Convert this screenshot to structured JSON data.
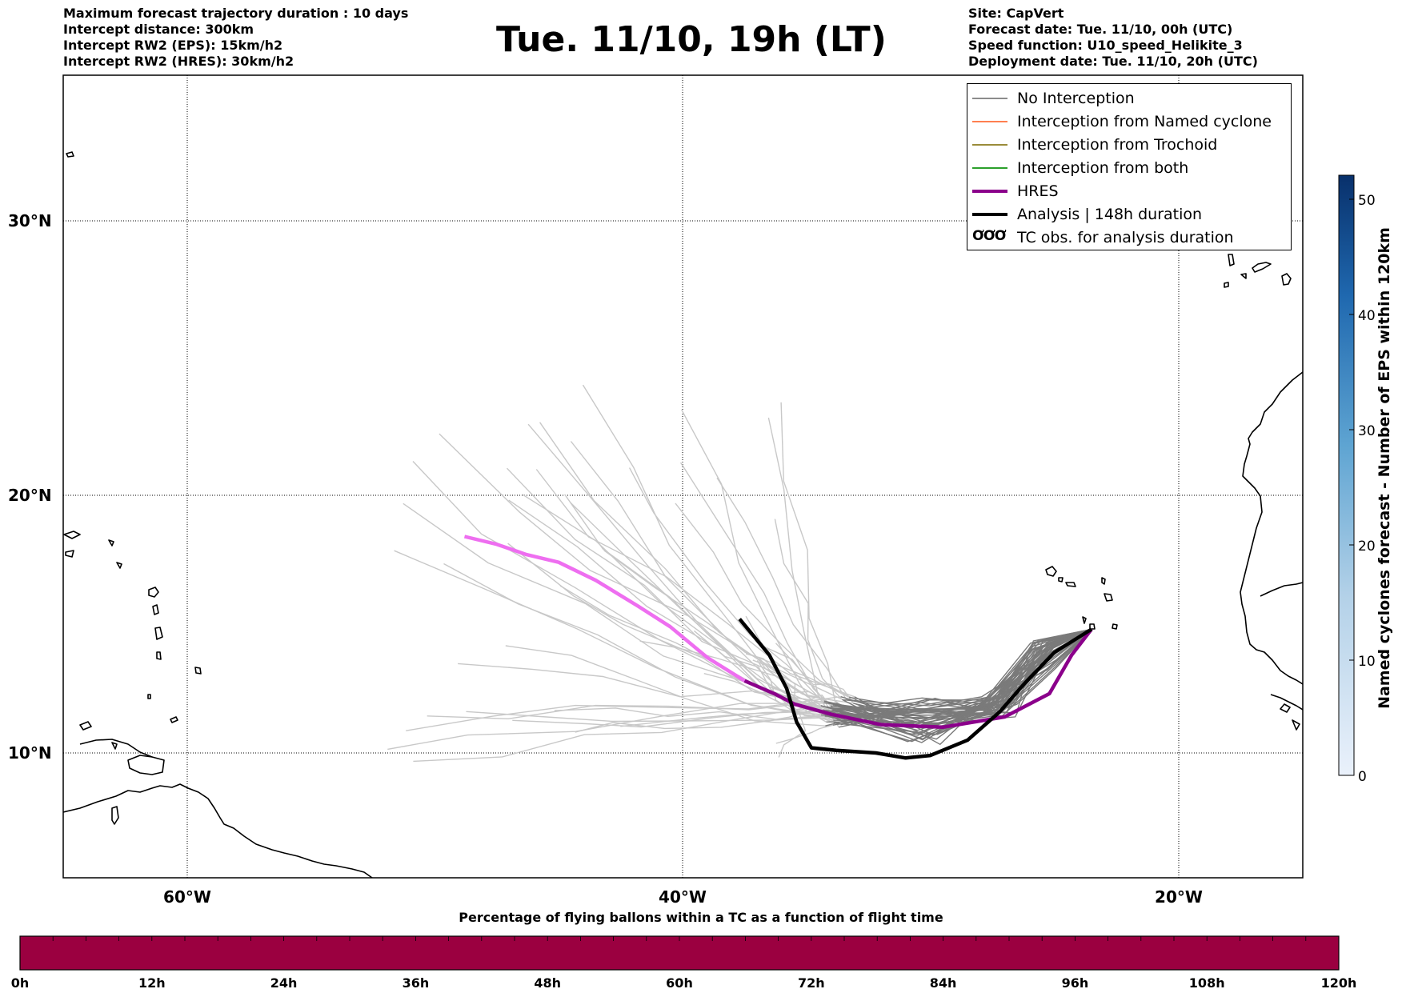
{
  "header": {
    "title": "Tue. 11/10, 19h (LT)",
    "left_lines": [
      "Maximum forecast trajectory duration : 10 days",
      "Intercept distance: 300km",
      "Intercept RW2 (EPS):  15km/h2",
      "Intercept RW2 (HRES): 30km/h2"
    ],
    "right_lines": [
      "Site: CapVert",
      "Forecast date: Tue. 11/10, 00h (UTC)",
      "Speed function: U10_speed_Helikite_3",
      "Deployment date: Tue. 11/10, 20h (UTC)"
    ]
  },
  "map": {
    "lat_labels": [
      "30°N",
      "20°N",
      "10°N"
    ],
    "lon_labels": [
      "60°W",
      "40°W",
      "20°W"
    ]
  },
  "legend": {
    "items": [
      {
        "label": "No Interception",
        "color": "#8c8c8c",
        "style": "thin"
      },
      {
        "label": "Interception from Named cyclone",
        "color": "#ff7f50",
        "style": "thin"
      },
      {
        "label": "Interception from Trochoid",
        "color": "#9a8c3a",
        "style": "thin"
      },
      {
        "label": "Interception from both",
        "color": "#2ca02c",
        "style": "thin"
      },
      {
        "label": "HRES",
        "color": "#8b008b",
        "style": "thick"
      },
      {
        "label": "Analysis | 148h duration",
        "color": "#000000",
        "style": "thick"
      },
      {
        "label": "TC obs. for analysis duration",
        "color": "#000000",
        "style": "glyph",
        "glyph": "ƠƠƠ"
      }
    ]
  },
  "colorbar": {
    "label": "Named cyclones forecast - Number of EPS within 120km",
    "ticks": [
      "0",
      "10",
      "20",
      "30",
      "40",
      "50"
    ],
    "color_low": "#e8f0fa",
    "color_high": "#08306b"
  },
  "timeline": {
    "title": "Percentage of flying ballons within a TC as a function of flight time",
    "ticks": [
      "0h",
      "12h",
      "24h",
      "36h",
      "48h",
      "60h",
      "72h",
      "84h",
      "96h",
      "108h",
      "120h"
    ],
    "fill_color": "#9b0040"
  },
  "tracks": {
    "origin": {
      "lon": -23.5,
      "lat": 14.8
    },
    "hres": [
      [
        -23.5,
        14.8
      ],
      [
        -24.3,
        13.8
      ],
      [
        -25.2,
        12.3
      ],
      [
        -27.0,
        11.4
      ],
      [
        -29.5,
        11.0
      ],
      [
        -32.0,
        11.1
      ],
      [
        -34.0,
        11.5
      ],
      [
        -35.5,
        11.9
      ],
      [
        -36.3,
        12.3
      ],
      [
        -37.5,
        12.8
      ],
      [
        -39.0,
        13.7
      ],
      [
        -40.5,
        14.9
      ],
      [
        -41.8,
        15.7
      ],
      [
        -43.5,
        16.7
      ],
      [
        -45.0,
        17.4
      ],
      [
        -46.3,
        17.7
      ],
      [
        -47.5,
        18.1
      ],
      [
        -48.8,
        18.4
      ]
    ],
    "analysis": [
      [
        -23.5,
        14.8
      ],
      [
        -25.0,
        13.9
      ],
      [
        -26.2,
        12.7
      ],
      [
        -27.2,
        11.6
      ],
      [
        -28.5,
        10.5
      ],
      [
        -30.0,
        9.9
      ],
      [
        -31.0,
        9.8
      ],
      [
        -32.2,
        10.0
      ],
      [
        -33.8,
        10.1
      ],
      [
        -34.8,
        10.2
      ],
      [
        -35.4,
        11.2
      ],
      [
        -35.8,
        12.5
      ],
      [
        -36.5,
        13.8
      ],
      [
        -37.7,
        15.2
      ]
    ]
  }
}
